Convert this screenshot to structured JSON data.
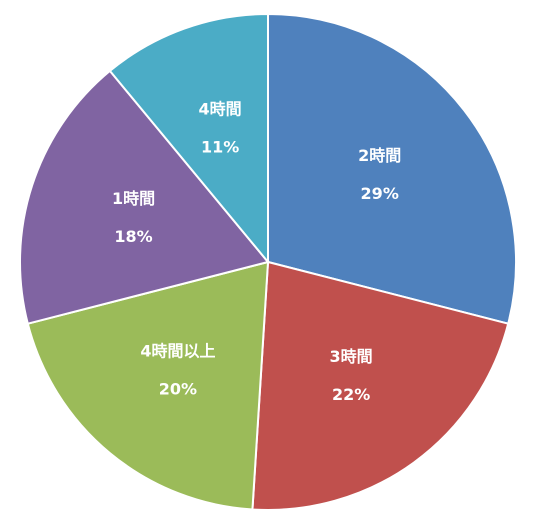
{
  "chart_data": {
    "type": "pie",
    "categories": [
      "2時間",
      "3時間",
      "4時間以上",
      "1時間",
      "4時間"
    ],
    "values": [
      29,
      22,
      20,
      18,
      11
    ],
    "value_labels": [
      "29%",
      "22%",
      "20%",
      "18%",
      "11%"
    ],
    "colors": [
      "#4f81bd",
      "#c0504d",
      "#9bbb59",
      "#8064a2",
      "#4bacc6"
    ]
  }
}
